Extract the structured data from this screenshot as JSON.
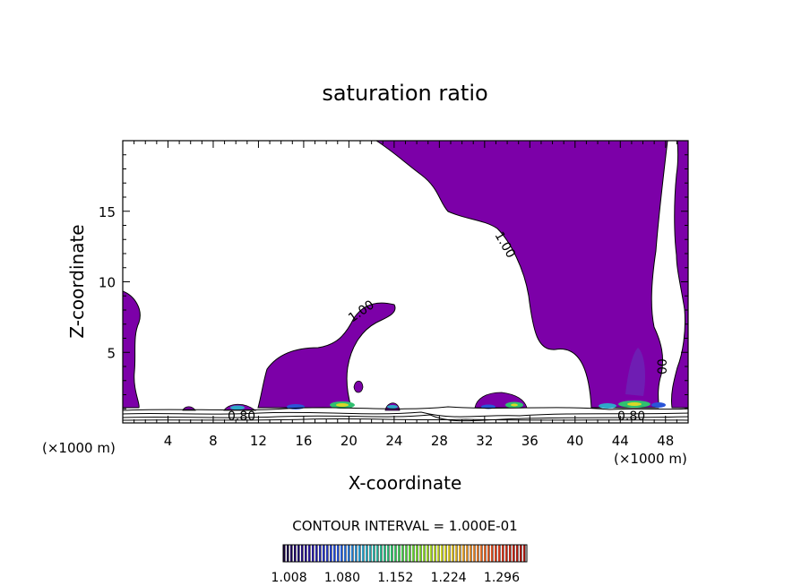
{
  "chart_data": {
    "type": "contour",
    "title": "saturation ratio",
    "xlabel": "X-coordinate",
    "ylabel": "Z-coordinate",
    "x_unit": "(×1000 m)",
    "x_unit_right": "(×1000 m)",
    "xlim": [
      0,
      50
    ],
    "ylim": [
      0,
      20
    ],
    "x_ticks": [
      4,
      8,
      12,
      16,
      20,
      24,
      28,
      32,
      36,
      40,
      44,
      48
    ],
    "y_ticks": [
      5,
      10,
      15
    ],
    "contour_interval_text": "CONTOUR INTERVAL = 1.000E-01",
    "contour_labels": [
      {
        "text": "1.00",
        "x": 21.3,
        "z": 8.1
      },
      {
        "text": "1.00",
        "x": 33.6,
        "z": 12.6
      },
      {
        "text": "0.80",
        "x": 10.8,
        "z": 0.5
      },
      {
        "text": "0.80",
        "x": 45.5,
        "z": 0.5
      },
      {
        "text": "00",
        "x": 48.0,
        "z": 3.1
      }
    ],
    "colorbar": {
      "ticks": [
        "1.008",
        "1.080",
        "1.152",
        "1.224",
        "1.296"
      ],
      "range": [
        1.0,
        1.33
      ],
      "colors": [
        "#1a0040",
        "#2b1a9a",
        "#2a54d8",
        "#2ea8c8",
        "#30c070",
        "#7ad830",
        "#d8d828",
        "#e89030",
        "#d84020",
        "#a81810"
      ]
    },
    "fill_color": "#7c00a8",
    "supersaturated_regions_x": [
      [
        0,
        2
      ],
      [
        9,
        25
      ],
      [
        29,
        36
      ],
      [
        40,
        50
      ]
    ]
  }
}
